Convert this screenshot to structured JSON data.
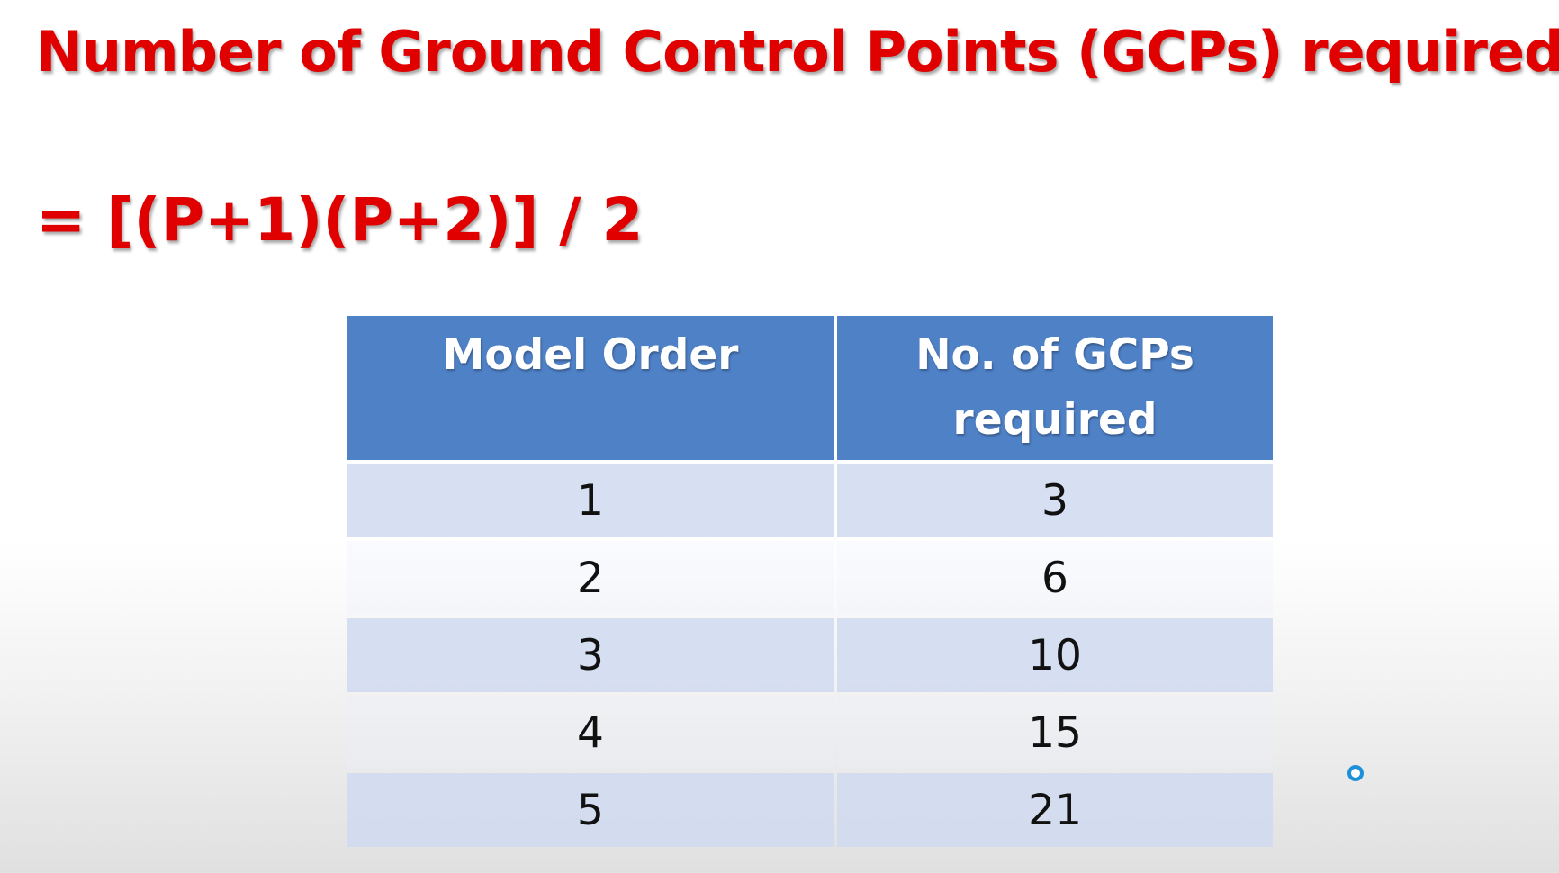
{
  "slide": {
    "title": "Number of Ground Control Points (GCPs) required",
    "formula": "= [(P+1)(P+2)] / 2"
  },
  "table": {
    "headers": [
      "Model Order",
      "No. of GCPs required"
    ],
    "rows": [
      [
        "1",
        "3"
      ],
      [
        "2",
        "6"
      ],
      [
        "3",
        "10"
      ],
      [
        "4",
        "15"
      ],
      [
        "5",
        "21"
      ]
    ]
  },
  "colors": {
    "title": "#e00000",
    "header_bg": "#4f81c7",
    "band_bg": "#d0daf0",
    "cursor": "#1e90d8"
  },
  "icons": {
    "cursor": "cursor-ring-icon"
  }
}
